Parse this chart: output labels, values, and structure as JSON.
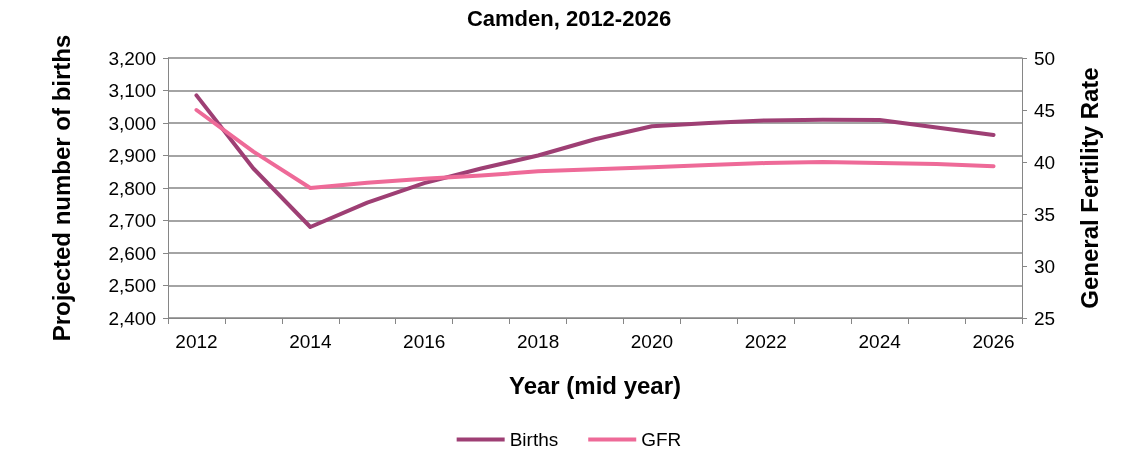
{
  "chart_data": {
    "type": "line",
    "title": "Camden, 2012-2026",
    "xlabel": "Year (mid year)",
    "ylabel": "Projected number of births",
    "y2label": "General Fertility Rate",
    "categories": [
      "2012",
      null,
      "2014",
      null,
      "2016",
      null,
      "2018",
      null,
      "2020",
      null,
      "2022",
      null,
      "2024",
      null,
      "2026"
    ],
    "series": [
      {
        "name": "Births",
        "color": "#9e3f74",
        "values": [
          3085,
          2860,
          2680,
          2755,
          2815,
          2860,
          2900,
          2950,
          2990,
          3000,
          3008,
          3010,
          3009,
          2986,
          2963
        ]
      },
      {
        "name": "GFR",
        "color": "#ee6a98",
        "axis": "y2",
        "values": [
          45.0,
          41.0,
          37.5,
          38.0,
          38.4,
          38.7,
          39.1,
          39.3,
          39.5,
          39.7,
          39.9,
          40.0,
          39.9,
          39.8,
          39.6
        ]
      }
    ],
    "ylim": [
      2400,
      3200
    ],
    "yticks": [
      {
        "value": 2400,
        "label": "2,400"
      },
      {
        "value": 2500,
        "label": "2,500"
      },
      {
        "value": 2600,
        "label": "2,600"
      },
      {
        "value": 2700,
        "label": "2,700"
      },
      {
        "value": 2800,
        "label": "2,800"
      },
      {
        "value": 2900,
        "label": "2,900"
      },
      {
        "value": 3000,
        "label": "3,000"
      },
      {
        "value": 3100,
        "label": "3,100"
      },
      {
        "value": 3200,
        "label": "3,200"
      }
    ],
    "y2lim": [
      25,
      50
    ],
    "y2ticks": [
      25,
      30,
      35,
      40,
      45,
      50
    ],
    "grid": "y",
    "legend": "bottom",
    "marker": "none",
    "line_style": "solid"
  }
}
